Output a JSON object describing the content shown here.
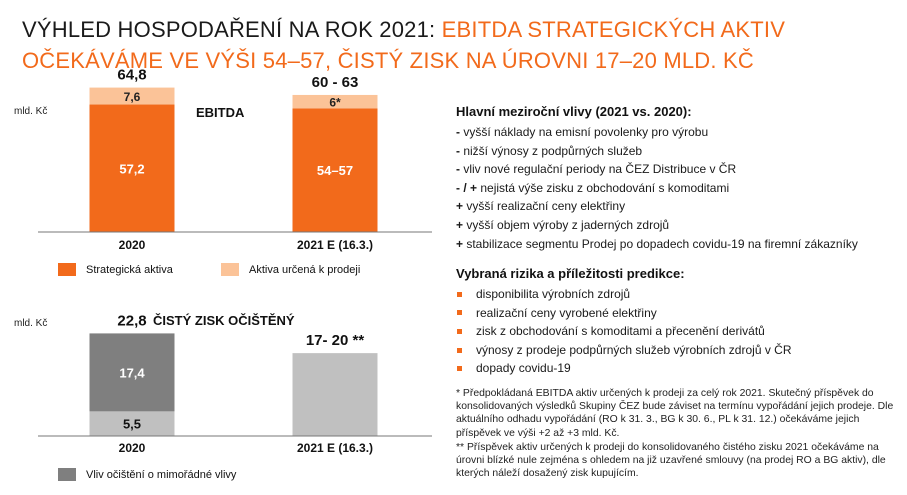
{
  "title": {
    "part1": "VÝHLED HOSPODAŘENÍ NA ROK 2021: ",
    "part2": "EBITDA STRATEGICKÝCH AKTIV OČEKÁVÁME VE VÝŠI 54–57, ČISTÝ ZISK NA ÚROVNI 17–20 MLD. KČ"
  },
  "colors": {
    "accent": "#f26a1b",
    "orange_bar": "#f26a1b",
    "peach_bar": "#fbc398",
    "dark_gray": "#7f7f7f",
    "light_gray": "#c0c0c0"
  },
  "chart_data": [
    {
      "type": "bar",
      "stacked": true,
      "title": "EBITDA",
      "unit_label": "mld. Kč",
      "categories": [
        "2020",
        "2021 E (16.3.)"
      ],
      "series": [
        {
          "name": "Strategická aktiva",
          "values": [
            57.2,
            55.5
          ],
          "labels": [
            "57,2",
            "54–57"
          ],
          "color": "#f26a1b"
        },
        {
          "name": "Aktiva určená k prodeji",
          "values": [
            7.6,
            6
          ],
          "labels": [
            "7,6",
            "6*"
          ],
          "color": "#fbc398"
        }
      ],
      "totals": [
        "64,8",
        "60 - 63"
      ],
      "ylim": [
        0,
        70
      ]
    },
    {
      "type": "bar",
      "stacked": true,
      "title": "ČISTÝ ZISK OČIŠTĚNÝ",
      "unit_label": "mld. Kč",
      "categories": [
        "2020",
        "2021 E (16.3.)"
      ],
      "series": [
        {
          "name": "",
          "values": [
            5.5,
            18.5
          ],
          "labels": [
            "5,5",
            ""
          ],
          "color": "#c0c0c0"
        },
        {
          "name": "Vliv očištění o mimořádné vlivy",
          "values": [
            17.4,
            0
          ],
          "labels": [
            "17,4",
            ""
          ],
          "color": "#7f7f7f"
        }
      ],
      "totals": [
        "22,8",
        "17- 20 **"
      ],
      "ylim": [
        0,
        25
      ]
    }
  ],
  "drivers": {
    "heading": "Hlavní meziroční vlivy (2021 vs. 2020):",
    "items": [
      {
        "sym": "-",
        "text": " vyšší náklady na emisní povolenky pro výrobu"
      },
      {
        "sym": "-",
        "text": " nižší výnosy z podpůrných služeb"
      },
      {
        "sym": "-",
        "text": " vliv nové regulační periody na ČEZ Distribuce v ČR"
      },
      {
        "sym": "- / +",
        "text": " nejistá výše zisku z obchodování s komoditami"
      },
      {
        "sym": "+",
        "text": " vyšší realizační ceny elektřiny"
      },
      {
        "sym": "+",
        "text": " vyšší objem výroby z jaderných zdrojů"
      },
      {
        "sym": "+",
        "text": " stabilizace segmentu Prodej po dopadech covidu-19 na firemní zákazníky"
      }
    ]
  },
  "risks": {
    "heading": "Vybraná rizika a příležitosti predikce:",
    "items": [
      "disponibilita výrobních zdrojů",
      "realizační ceny vyrobené elektřiny",
      "zisk z obchodování s komoditami a přecenění derivátů",
      "výnosy z prodeje podpůrných služeb výrobních zdrojů v ČR",
      "dopady covidu-19"
    ]
  },
  "notes": {
    "note1": "* Předpokládaná EBITDA aktiv určených k prodeji za celý rok 2021. Skutečný příspěvek do konsolidovaných výsledků Skupiny ČEZ bude záviset na termínu vypořádání jejich prodeje. Dle aktuálního odhadu vypořádání (RO k 31. 3., BG k 30. 6., PL k 31. 12.) očekáváme jejich příspěvek ve výši +2 až +3 mld. Kč.",
    "note2": "** Příspěvek aktiv určených k prodeji do konsolidovaného čistého zisku 2021 očekáváme na úrovni blízké nule zejména s ohledem na již uzavřené smlouvy (na prodej RO a BG aktiv), dle kterých náleží dosažený zisk kupujícím."
  }
}
